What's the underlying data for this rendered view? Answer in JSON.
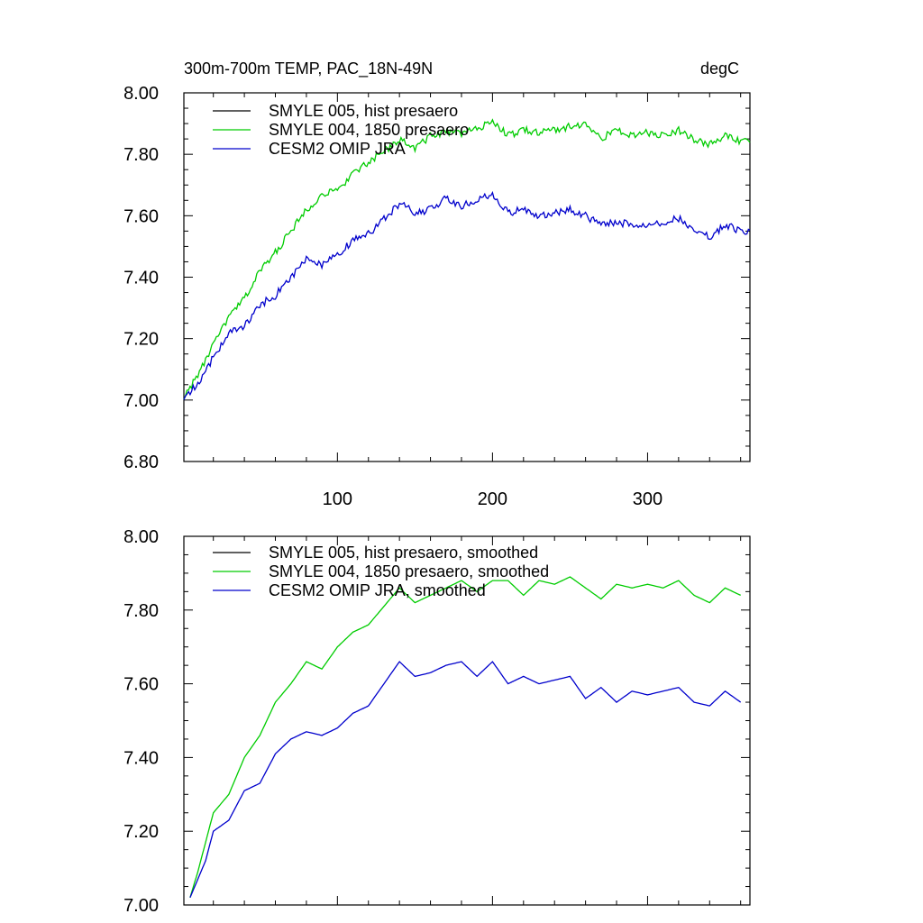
{
  "title_left": "300m-700m TEMP, PAC_18N-49N",
  "title_right": "degC",
  "colors": {
    "hist": "#000000",
    "p1850": "#00cc00",
    "omip": "#0000cc"
  },
  "chart_data": [
    {
      "type": "line",
      "title": "300m-700m TEMP, PAC_18N-49N",
      "units": "degC",
      "xlim": [
        1,
        366
      ],
      "ylim": [
        6.8,
        8.0
      ],
      "x_ticks": [
        100,
        200,
        300
      ],
      "x_tick_labels": [
        "100",
        "200",
        "300"
      ],
      "y_ticks": [
        6.8,
        7.0,
        7.2,
        7.4,
        7.6,
        7.8,
        8.0
      ],
      "y_tick_labels": [
        "6.80",
        "7.00",
        "7.20",
        "7.40",
        "7.60",
        "7.80",
        "8.00"
      ],
      "legend": [
        "SMYLE 005, hist presaero",
        "SMYLE 004, 1850 presaero",
        "CESM2 OMIP JRA"
      ],
      "legend_position": "top-left",
      "noisy": true,
      "series": [
        {
          "name": "SMYLE 005, hist presaero",
          "color": "#000000",
          "x": [
            1,
            10,
            20,
            30,
            40,
            50,
            60,
            70,
            80,
            90,
            100,
            110,
            120,
            130,
            140,
            150,
            160,
            170,
            180,
            190,
            200,
            210,
            220,
            230,
            240,
            250,
            260,
            270,
            280,
            290,
            300,
            310,
            320,
            330,
            340,
            350,
            360,
            366
          ],
          "y": [
            7.01,
            7.08,
            7.18,
            7.27,
            7.33,
            7.42,
            7.48,
            7.55,
            7.62,
            7.67,
            7.68,
            7.74,
            7.77,
            7.81,
            7.85,
            7.82,
            7.86,
            7.87,
            7.87,
            7.88,
            7.91,
            7.86,
            7.88,
            7.87,
            7.88,
            7.89,
            7.9,
            7.85,
            7.88,
            7.86,
            7.87,
            7.86,
            7.88,
            7.85,
            7.83,
            7.86,
            7.84,
            7.84
          ]
        },
        {
          "name": "SMYLE 004, 1850 presaero",
          "color": "#00cc00",
          "x": [
            1,
            10,
            20,
            30,
            40,
            50,
            60,
            70,
            80,
            90,
            100,
            110,
            120,
            130,
            140,
            150,
            160,
            170,
            180,
            190,
            200,
            210,
            220,
            230,
            240,
            250,
            260,
            270,
            280,
            290,
            300,
            310,
            320,
            330,
            340,
            350,
            360,
            366
          ],
          "y": [
            7.01,
            7.08,
            7.18,
            7.27,
            7.33,
            7.42,
            7.48,
            7.55,
            7.62,
            7.67,
            7.68,
            7.74,
            7.77,
            7.81,
            7.85,
            7.82,
            7.86,
            7.87,
            7.87,
            7.88,
            7.91,
            7.86,
            7.88,
            7.87,
            7.88,
            7.89,
            7.9,
            7.85,
            7.88,
            7.86,
            7.87,
            7.86,
            7.88,
            7.85,
            7.83,
            7.86,
            7.84,
            7.84
          ]
        },
        {
          "name": "CESM2 OMIP JRA",
          "color": "#0000cc",
          "x": [
            1,
            10,
            20,
            30,
            40,
            50,
            60,
            70,
            80,
            90,
            100,
            110,
            120,
            130,
            140,
            150,
            160,
            170,
            180,
            190,
            200,
            210,
            220,
            230,
            240,
            250,
            260,
            270,
            280,
            290,
            300,
            310,
            320,
            330,
            340,
            350,
            360,
            366
          ],
          "y": [
            7.01,
            7.05,
            7.14,
            7.22,
            7.24,
            7.31,
            7.34,
            7.4,
            7.46,
            7.44,
            7.47,
            7.52,
            7.54,
            7.59,
            7.64,
            7.61,
            7.62,
            7.66,
            7.63,
            7.65,
            7.67,
            7.61,
            7.62,
            7.6,
            7.61,
            7.62,
            7.6,
            7.57,
            7.58,
            7.57,
            7.57,
            7.58,
            7.59,
            7.56,
            7.53,
            7.57,
            7.55,
            7.55
          ]
        }
      ]
    },
    {
      "type": "line",
      "xlim": [
        1,
        366
      ],
      "ylim": [
        7.0,
        8.0
      ],
      "x_ticks": [
        100,
        200,
        300
      ],
      "x_tick_labels": [],
      "y_ticks": [
        7.0,
        7.2,
        7.4,
        7.6,
        7.8,
        8.0
      ],
      "y_tick_labels": [
        "7.00",
        "7.20",
        "7.40",
        "7.60",
        "7.80",
        "8.00"
      ],
      "legend": [
        "SMYLE 005, hist presaero, smoothed",
        "SMYLE 004, 1850 presaero, smoothed",
        "CESM2 OMIP JRA, smoothed"
      ],
      "legend_position": "top-left",
      "noisy": false,
      "series": [
        {
          "name": "SMYLE 005, hist presaero, smoothed",
          "color": "#000000",
          "x": [
            5,
            10,
            15,
            20,
            30,
            40,
            50,
            60,
            70,
            80,
            90,
            100,
            110,
            120,
            130,
            140,
            150,
            160,
            170,
            180,
            190,
            200,
            210,
            220,
            230,
            240,
            250,
            260,
            270,
            280,
            290,
            300,
            310,
            320,
            330,
            340,
            350,
            360
          ],
          "y": [
            7.02,
            7.09,
            7.17,
            7.25,
            7.3,
            7.4,
            7.46,
            7.55,
            7.6,
            7.66,
            7.64,
            7.7,
            7.74,
            7.76,
            7.81,
            7.86,
            7.82,
            7.84,
            7.86,
            7.88,
            7.85,
            7.88,
            7.88,
            7.84,
            7.88,
            7.87,
            7.89,
            7.86,
            7.83,
            7.87,
            7.86,
            7.87,
            7.86,
            7.88,
            7.84,
            7.82,
            7.86,
            7.84
          ]
        },
        {
          "name": "SMYLE 004, 1850 presaero, smoothed",
          "color": "#00cc00",
          "x": [
            5,
            10,
            15,
            20,
            30,
            40,
            50,
            60,
            70,
            80,
            90,
            100,
            110,
            120,
            130,
            140,
            150,
            160,
            170,
            180,
            190,
            200,
            210,
            220,
            230,
            240,
            250,
            260,
            270,
            280,
            290,
            300,
            310,
            320,
            330,
            340,
            350,
            360
          ],
          "y": [
            7.02,
            7.09,
            7.17,
            7.25,
            7.3,
            7.4,
            7.46,
            7.55,
            7.6,
            7.66,
            7.64,
            7.7,
            7.74,
            7.76,
            7.81,
            7.86,
            7.82,
            7.84,
            7.86,
            7.88,
            7.85,
            7.88,
            7.88,
            7.84,
            7.88,
            7.87,
            7.89,
            7.86,
            7.83,
            7.87,
            7.86,
            7.87,
            7.86,
            7.88,
            7.84,
            7.82,
            7.86,
            7.84
          ]
        },
        {
          "name": "CESM2 OMIP JRA, smoothed",
          "color": "#0000cc",
          "x": [
            5,
            10,
            15,
            20,
            30,
            40,
            50,
            60,
            70,
            80,
            90,
            100,
            110,
            120,
            130,
            140,
            150,
            160,
            170,
            180,
            190,
            200,
            210,
            220,
            230,
            240,
            250,
            260,
            270,
            280,
            290,
            300,
            310,
            320,
            330,
            340,
            350,
            360
          ],
          "y": [
            7.02,
            7.07,
            7.12,
            7.2,
            7.23,
            7.31,
            7.33,
            7.41,
            7.45,
            7.47,
            7.46,
            7.48,
            7.52,
            7.54,
            7.6,
            7.66,
            7.62,
            7.63,
            7.65,
            7.66,
            7.62,
            7.66,
            7.6,
            7.62,
            7.6,
            7.61,
            7.62,
            7.56,
            7.59,
            7.55,
            7.58,
            7.57,
            7.58,
            7.59,
            7.55,
            7.54,
            7.58,
            7.55
          ]
        }
      ]
    }
  ]
}
